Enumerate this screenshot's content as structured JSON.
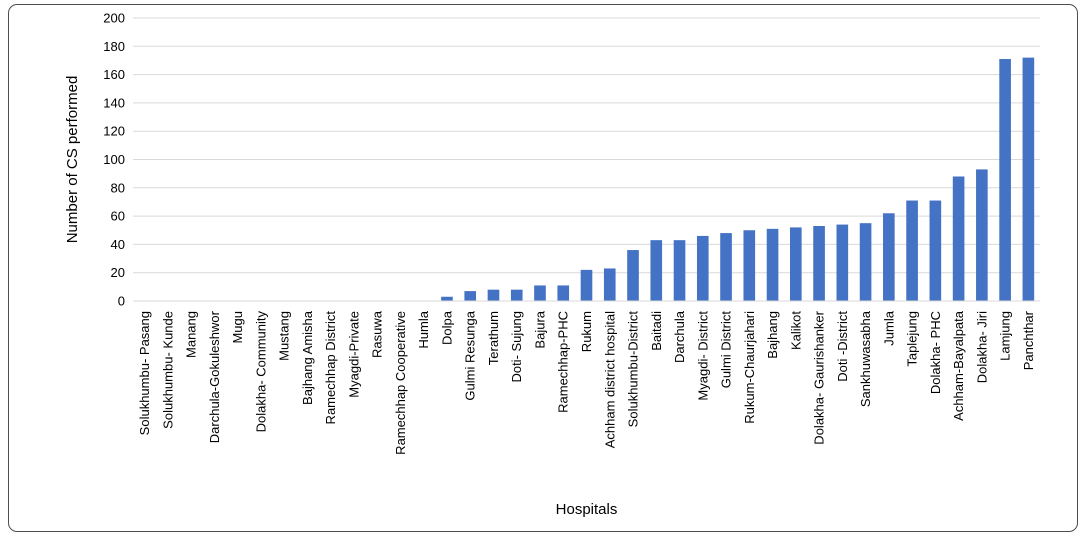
{
  "chart_data": {
    "type": "bar",
    "title": "",
    "xlabel": "Hospitals",
    "ylabel": "Number of CS performed",
    "ylim": [
      0,
      200
    ],
    "yticks": [
      0,
      20,
      40,
      60,
      80,
      100,
      120,
      140,
      160,
      180,
      200
    ],
    "grid": true,
    "legend": "none",
    "bar_color": "#4472c4",
    "categories": [
      "Solukhumbu- Pasang",
      "Solukhumbu- Kunde",
      "Manang",
      "Darchula-Gokuleshwor",
      "Mugu",
      "Dolakha- Community",
      "Mustang",
      "Bajhang Amisha",
      "Ramechhap District",
      "Myagdi-Private",
      "Rasuwa",
      "Ramechhap Cooperative",
      "Humla",
      "Dolpa",
      "Gulmi Resunga",
      "Terathum",
      "Doti- Sujung",
      "Bajura",
      "Ramechhap-PHC",
      "Rukum",
      "Achham district hospital",
      "Solukhumbu-District",
      "Baitadi",
      "Darchula",
      "Myagdi- District",
      "Gulmi District",
      "Rukum-Chaurjahari",
      "Bajhang",
      "Kalikot",
      "Dolakha- Gaurishanker",
      "Doti -District",
      "Sankhuwasabha",
      "Jumla",
      "Taplejung",
      "Dolakha- PHC",
      "Achham-Bayalpata",
      "Dolakha- Jiri",
      "Lamjung",
      "Panchthar"
    ],
    "values": [
      0,
      0,
      0,
      0,
      0,
      0,
      0,
      0,
      0,
      0,
      0,
      0,
      0,
      3,
      7,
      8,
      8,
      11,
      11,
      22,
      23,
      36,
      43,
      43,
      46,
      48,
      50,
      51,
      52,
      53,
      54,
      55,
      62,
      71,
      71,
      88,
      93,
      171,
      172
    ]
  }
}
